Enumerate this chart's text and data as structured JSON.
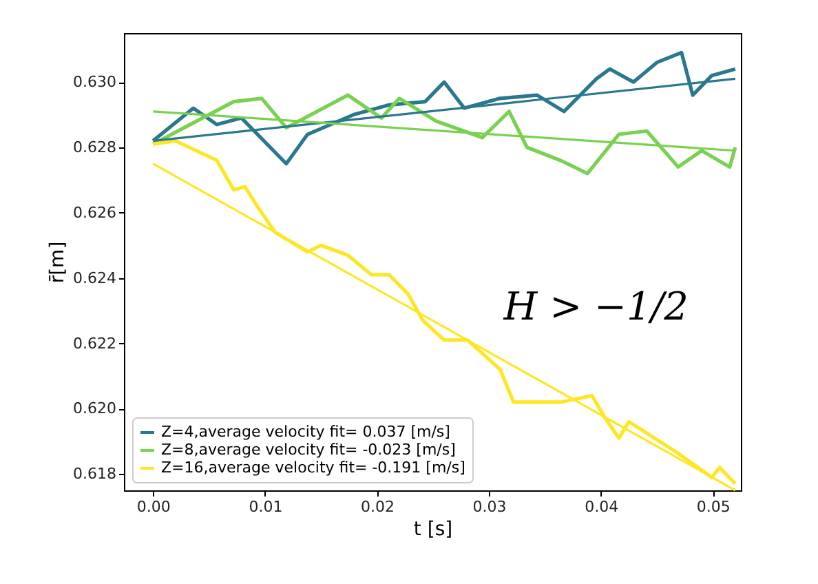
{
  "chart_data": {
    "type": "line",
    "xlabel": "t [s]",
    "ylabel": "r̄[m]",
    "annotations": [
      "H > −1/2"
    ],
    "xlim": [
      -0.0026,
      0.0525
    ],
    "ylim": [
      0.6175,
      0.6315
    ],
    "xticks": [
      {
        "value": 0,
        "label": "0.00"
      },
      {
        "value": 0.01,
        "label": "0.01"
      },
      {
        "value": 0.02,
        "label": "0.02"
      },
      {
        "value": 0.03,
        "label": "0.03"
      },
      {
        "value": 0.04,
        "label": "0.04"
      },
      {
        "value": 0.05,
        "label": "0.05"
      }
    ],
    "yticks": [
      0.618,
      {
        "value": 0.62,
        "label": "0.620"
      },
      0.622,
      0.624,
      0.626,
      0.628,
      {
        "value": 0.63,
        "label": "0.630"
      }
    ],
    "grid": false,
    "legend": "bottom left",
    "line_style": "solid",
    "marker": "none",
    "series": [
      {
        "name": "Z=4,average velocity fit= 0.037 [m/s]",
        "color": "#2a788e",
        "x": [
          0,
          0.0036,
          0.0057,
          0.0079,
          0.0119,
          0.0138,
          0.0179,
          0.0211,
          0.0243,
          0.026,
          0.0278,
          0.031,
          0.0343,
          0.0367,
          0.0396,
          0.0408,
          0.0429,
          0.045,
          0.0472,
          0.0482,
          0.0499,
          0.052
        ],
        "values": [
          0.6282,
          0.6292,
          0.6287,
          0.6289,
          0.6275,
          0.6284,
          0.629,
          0.6293,
          0.6294,
          0.63,
          0.6292,
          0.6295,
          0.6296,
          0.6291,
          0.6301,
          0.6304,
          0.63,
          0.6306,
          0.6309,
          0.6296,
          0.6302,
          0.6304
        ]
      },
      {
        "name": "Z=8,average velocity fit= -0.023 [m/s]",
        "color": "#7ad151",
        "x": [
          0,
          0.0072,
          0.0097,
          0.0119,
          0.0174,
          0.0204,
          0.022,
          0.0253,
          0.0294,
          0.0318,
          0.0334,
          0.0364,
          0.0388,
          0.0416,
          0.0441,
          0.0469,
          0.049,
          0.0515,
          0.052
        ],
        "values": [
          0.6281,
          0.6294,
          0.6295,
          0.6286,
          0.6296,
          0.6289,
          0.6295,
          0.6288,
          0.6283,
          0.6291,
          0.628,
          0.6276,
          0.6272,
          0.6284,
          0.6285,
          0.6274,
          0.6279,
          0.6274,
          0.628
        ]
      },
      {
        "name": "Z=16,average velocity fit= -0.191 [m/s]",
        "color": "#fde725",
        "x": [
          0,
          0.002,
          0.0057,
          0.0072,
          0.0082,
          0.0093,
          0.0109,
          0.0138,
          0.015,
          0.0174,
          0.0195,
          0.0211,
          0.0228,
          0.0241,
          0.026,
          0.0281,
          0.031,
          0.0322,
          0.0364,
          0.0392,
          0.0404,
          0.0416,
          0.0425,
          0.0466,
          0.0499,
          0.0506,
          0.052
        ],
        "values": [
          0.6281,
          0.6282,
          0.6276,
          0.6267,
          0.6268,
          0.6262,
          0.6254,
          0.6248,
          0.625,
          0.6247,
          0.6241,
          0.6241,
          0.6235,
          0.6227,
          0.6221,
          0.6221,
          0.6212,
          0.6202,
          0.6202,
          0.6204,
          0.6197,
          0.6191,
          0.6196,
          0.6187,
          0.6179,
          0.6182,
          0.6177
        ]
      },
      {
        "color": "#2a788e",
        "x": [
          0,
          0.052
        ],
        "values": [
          0.6282,
          0.6301
        ]
      },
      {
        "color": "#7ad151",
        "x": [
          0,
          0.052
        ],
        "values": [
          0.6291,
          0.6279
        ]
      },
      {
        "color": "#fde725",
        "x": [
          0,
          0.052
        ],
        "values": [
          0.6275,
          0.6175
        ]
      }
    ]
  }
}
